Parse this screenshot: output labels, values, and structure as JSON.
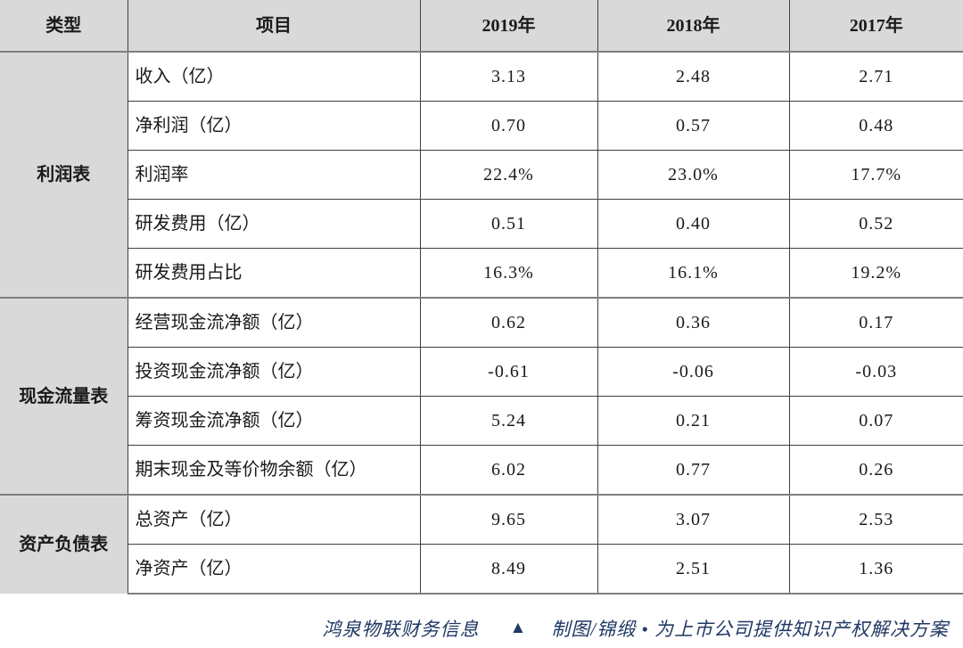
{
  "chart_data": {
    "type": "table",
    "title": "鸿泉物联财务信息",
    "columns": [
      "类型",
      "项目",
      "2019年",
      "2018年",
      "2017年"
    ],
    "year_categories": [
      "2019",
      "2018",
      "2017"
    ],
    "sections": [
      {
        "type": "利润表",
        "rows": [
          {
            "item": "收入（亿）",
            "values": [
              "3.13",
              "2.48",
              "2.71"
            ]
          },
          {
            "item": "净利润（亿）",
            "values": [
              "0.70",
              "0.57",
              "0.48"
            ]
          },
          {
            "item": "利润率",
            "values": [
              "22.4%",
              "23.0%",
              "17.7%"
            ]
          },
          {
            "item": "研发费用（亿）",
            "values": [
              "0.51",
              "0.40",
              "0.52"
            ]
          },
          {
            "item": "研发费用占比",
            "values": [
              "16.3%",
              "16.1%",
              "19.2%"
            ]
          }
        ]
      },
      {
        "type": "现金流量表",
        "rows": [
          {
            "item": "经营现金流净额（亿）",
            "values": [
              "0.62",
              "0.36",
              "0.17"
            ]
          },
          {
            "item": "投资现金流净额（亿）",
            "values": [
              "-0.61",
              "-0.06",
              "-0.03"
            ]
          },
          {
            "item": "筹资现金流净额（亿）",
            "values": [
              "5.24",
              "0.21",
              "0.07"
            ]
          },
          {
            "item": "期末现金及等价物余额（亿）",
            "values": [
              "6.02",
              "0.77",
              "0.26"
            ]
          }
        ]
      },
      {
        "type": "资产负债表",
        "rows": [
          {
            "item": "总资产（亿）",
            "values": [
              "9.65",
              "3.07",
              "2.53"
            ]
          },
          {
            "item": "净资产（亿）",
            "values": [
              "8.49",
              "2.51",
              "1.36"
            ]
          }
        ]
      }
    ]
  },
  "footer": {
    "source_label": "鸿泉物联财务信息",
    "separator_icon": "▲",
    "credit": "制图/锦缎 • 为上市公司提供知识产权解决方案"
  },
  "colors": {
    "header_bg": "#d9d9d9",
    "grid_minor": "#404040",
    "grid_major": "#7f7f7f",
    "footer_text": "#1f3864"
  }
}
